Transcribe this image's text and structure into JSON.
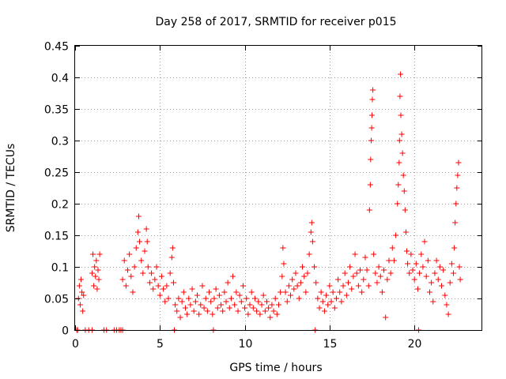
{
  "chart_data": {
    "type": "scatter",
    "title": "Day 258 of 2017, SRMTID for receiver p015",
    "xlabel": "GPS time / hours",
    "ylabel": "SRMTID / TECUs",
    "xlim": [
      0,
      24
    ],
    "ylim": [
      0,
      0.45
    ],
    "grid": true,
    "marker": "plus",
    "series_color": "#ff0000",
    "x_ticks": [
      0,
      5,
      10,
      15,
      20
    ],
    "x_tick_labels": [
      "0",
      "5",
      "10",
      "15",
      "20"
    ],
    "y_ticks": [
      0,
      0.05,
      0.1,
      0.15,
      0.2,
      0.25,
      0.3,
      0.35,
      0.4,
      0.45
    ],
    "y_tick_labels": [
      "0",
      "0.05",
      "0.1",
      "0.15",
      "0.2",
      "0.25",
      "0.3",
      "0.35",
      "0.4",
      "0.45"
    ],
    "series": [
      {
        "name": "SRMTID",
        "points": [
          [
            0.1,
            0.0
          ],
          [
            0.15,
            0.0
          ],
          [
            0.6,
            0.0
          ],
          [
            0.8,
            0.0
          ],
          [
            1.0,
            0.0
          ],
          [
            1.7,
            0.0
          ],
          [
            1.85,
            0.0
          ],
          [
            2.3,
            0.0
          ],
          [
            2.45,
            0.0
          ],
          [
            2.6,
            0.0
          ],
          [
            2.7,
            0.0
          ],
          [
            2.8,
            0.0
          ],
          [
            5.85,
            0.0
          ],
          [
            8.15,
            0.0
          ],
          [
            14.15,
            0.0
          ],
          [
            20.25,
            0.0
          ],
          [
            0.2,
            0.05
          ],
          [
            0.25,
            0.07
          ],
          [
            0.3,
            0.04
          ],
          [
            0.35,
            0.08
          ],
          [
            0.4,
            0.06
          ],
          [
            0.45,
            0.03
          ],
          [
            0.5,
            0.055
          ],
          [
            1.0,
            0.09
          ],
          [
            1.05,
            0.12
          ],
          [
            1.1,
            0.07
          ],
          [
            1.15,
            0.1
          ],
          [
            1.2,
            0.085
          ],
          [
            1.25,
            0.11
          ],
          [
            1.3,
            0.065
          ],
          [
            1.35,
            0.095
          ],
          [
            1.4,
            0.08
          ],
          [
            1.45,
            0.12
          ],
          [
            2.8,
            0.08
          ],
          [
            2.9,
            0.11
          ],
          [
            3.0,
            0.07
          ],
          [
            3.1,
            0.095
          ],
          [
            3.2,
            0.12
          ],
          [
            3.3,
            0.085
          ],
          [
            3.4,
            0.06
          ],
          [
            3.5,
            0.1
          ],
          [
            3.6,
            0.13
          ],
          [
            3.7,
            0.155
          ],
          [
            3.75,
            0.18
          ],
          [
            3.8,
            0.14
          ],
          [
            3.9,
            0.11
          ],
          [
            4.0,
            0.09
          ],
          [
            4.1,
            0.125
          ],
          [
            4.2,
            0.16
          ],
          [
            4.25,
            0.14
          ],
          [
            4.3,
            0.1
          ],
          [
            4.4,
            0.075
          ],
          [
            4.5,
            0.09
          ],
          [
            4.6,
            0.065
          ],
          [
            4.7,
            0.08
          ],
          [
            4.8,
            0.1
          ],
          [
            4.9,
            0.07
          ],
          [
            5.0,
            0.055
          ],
          [
            5.1,
            0.085
          ],
          [
            5.2,
            0.065
          ],
          [
            5.3,
            0.045
          ],
          [
            5.4,
            0.07
          ],
          [
            5.5,
            0.05
          ],
          [
            5.6,
            0.09
          ],
          [
            5.7,
            0.115
          ],
          [
            5.75,
            0.13
          ],
          [
            5.8,
            0.075
          ],
          [
            5.9,
            0.04
          ],
          [
            6.0,
            0.03
          ],
          [
            6.1,
            0.05
          ],
          [
            6.2,
            0.02
          ],
          [
            6.3,
            0.045
          ],
          [
            6.4,
            0.06
          ],
          [
            6.5,
            0.035
          ],
          [
            6.6,
            0.025
          ],
          [
            6.7,
            0.05
          ],
          [
            6.8,
            0.04
          ],
          [
            6.9,
            0.065
          ],
          [
            7.0,
            0.03
          ],
          [
            7.1,
            0.045
          ],
          [
            7.2,
            0.055
          ],
          [
            7.3,
            0.025
          ],
          [
            7.4,
            0.04
          ],
          [
            7.5,
            0.07
          ],
          [
            7.6,
            0.035
          ],
          [
            7.7,
            0.05
          ],
          [
            7.8,
            0.03
          ],
          [
            7.9,
            0.06
          ],
          [
            8.0,
            0.045
          ],
          [
            8.1,
            0.025
          ],
          [
            8.2,
            0.05
          ],
          [
            8.3,
            0.065
          ],
          [
            8.4,
            0.035
          ],
          [
            8.5,
            0.055
          ],
          [
            8.6,
            0.04
          ],
          [
            8.7,
            0.03
          ],
          [
            8.8,
            0.06
          ],
          [
            8.9,
            0.045
          ],
          [
            9.0,
            0.075
          ],
          [
            9.1,
            0.035
          ],
          [
            9.2,
            0.05
          ],
          [
            9.3,
            0.085
          ],
          [
            9.4,
            0.04
          ],
          [
            9.5,
            0.06
          ],
          [
            9.6,
            0.03
          ],
          [
            9.7,
            0.055
          ],
          [
            9.8,
            0.045
          ],
          [
            9.9,
            0.07
          ],
          [
            10.0,
            0.035
          ],
          [
            10.1,
            0.05
          ],
          [
            10.2,
            0.025
          ],
          [
            10.3,
            0.04
          ],
          [
            10.4,
            0.06
          ],
          [
            10.5,
            0.035
          ],
          [
            10.6,
            0.05
          ],
          [
            10.7,
            0.03
          ],
          [
            10.8,
            0.045
          ],
          [
            10.9,
            0.025
          ],
          [
            11.0,
            0.04
          ],
          [
            11.1,
            0.055
          ],
          [
            11.2,
            0.03
          ],
          [
            11.3,
            0.045
          ],
          [
            11.4,
            0.035
          ],
          [
            11.5,
            0.02
          ],
          [
            11.6,
            0.04
          ],
          [
            11.7,
            0.03
          ],
          [
            11.8,
            0.05
          ],
          [
            11.9,
            0.025
          ],
          [
            12.0,
            0.04
          ],
          [
            12.1,
            0.06
          ],
          [
            12.2,
            0.085
          ],
          [
            12.25,
            0.13
          ],
          [
            12.3,
            0.105
          ],
          [
            12.4,
            0.06
          ],
          [
            12.5,
            0.045
          ],
          [
            12.6,
            0.07
          ],
          [
            12.7,
            0.055
          ],
          [
            12.8,
            0.08
          ],
          [
            12.9,
            0.065
          ],
          [
            13.0,
            0.09
          ],
          [
            13.1,
            0.07
          ],
          [
            13.2,
            0.05
          ],
          [
            13.3,
            0.075
          ],
          [
            13.4,
            0.1
          ],
          [
            13.5,
            0.085
          ],
          [
            13.6,
            0.06
          ],
          [
            13.7,
            0.09
          ],
          [
            13.8,
            0.12
          ],
          [
            13.9,
            0.155
          ],
          [
            13.95,
            0.17
          ],
          [
            14.0,
            0.14
          ],
          [
            14.1,
            0.1
          ],
          [
            14.2,
            0.075
          ],
          [
            14.3,
            0.05
          ],
          [
            14.4,
            0.035
          ],
          [
            14.5,
            0.06
          ],
          [
            14.6,
            0.045
          ],
          [
            14.7,
            0.03
          ],
          [
            14.8,
            0.055
          ],
          [
            14.9,
            0.04
          ],
          [
            15.0,
            0.07
          ],
          [
            15.1,
            0.045
          ],
          [
            15.2,
            0.06
          ],
          [
            15.3,
            0.035
          ],
          [
            15.4,
            0.05
          ],
          [
            15.5,
            0.08
          ],
          [
            15.6,
            0.06
          ],
          [
            15.7,
            0.045
          ],
          [
            15.8,
            0.07
          ],
          [
            15.9,
            0.09
          ],
          [
            16.0,
            0.055
          ],
          [
            16.1,
            0.075
          ],
          [
            16.2,
            0.1
          ],
          [
            16.3,
            0.065
          ],
          [
            16.4,
            0.085
          ],
          [
            16.5,
            0.12
          ],
          [
            16.6,
            0.09
          ],
          [
            16.7,
            0.07
          ],
          [
            16.8,
            0.095
          ],
          [
            16.9,
            0.06
          ],
          [
            17.0,
            0.08
          ],
          [
            17.1,
            0.115
          ],
          [
            17.2,
            0.095
          ],
          [
            17.3,
            0.07
          ],
          [
            17.35,
            0.19
          ],
          [
            17.4,
            0.23
          ],
          [
            17.42,
            0.27
          ],
          [
            17.45,
            0.3
          ],
          [
            17.48,
            0.32
          ],
          [
            17.5,
            0.34
          ],
          [
            17.52,
            0.365
          ],
          [
            17.55,
            0.38
          ],
          [
            17.6,
            0.12
          ],
          [
            17.7,
            0.09
          ],
          [
            17.8,
            0.075
          ],
          [
            17.9,
            0.1
          ],
          [
            18.0,
            0.085
          ],
          [
            18.1,
            0.06
          ],
          [
            18.2,
            0.095
          ],
          [
            18.3,
            0.02
          ],
          [
            18.4,
            0.08
          ],
          [
            18.5,
            0.11
          ],
          [
            18.6,
            0.09
          ],
          [
            18.7,
            0.13
          ],
          [
            18.8,
            0.11
          ],
          [
            18.9,
            0.15
          ],
          [
            19.0,
            0.2
          ],
          [
            19.05,
            0.23
          ],
          [
            19.1,
            0.265
          ],
          [
            19.12,
            0.3
          ],
          [
            19.15,
            0.37
          ],
          [
            19.18,
            0.405
          ],
          [
            19.2,
            0.34
          ],
          [
            19.25,
            0.31
          ],
          [
            19.3,
            0.28
          ],
          [
            19.35,
            0.245
          ],
          [
            19.4,
            0.22
          ],
          [
            19.45,
            0.19
          ],
          [
            19.5,
            0.155
          ],
          [
            19.55,
            0.125
          ],
          [
            19.6,
            0.105
          ],
          [
            19.7,
            0.09
          ],
          [
            19.8,
            0.12
          ],
          [
            19.9,
            0.095
          ],
          [
            20.0,
            0.08
          ],
          [
            20.1,
            0.105
          ],
          [
            20.2,
            0.065
          ],
          [
            20.3,
            0.09
          ],
          [
            20.4,
            0.12
          ],
          [
            20.5,
            0.1
          ],
          [
            20.6,
            0.14
          ],
          [
            20.7,
            0.085
          ],
          [
            20.8,
            0.11
          ],
          [
            20.9,
            0.06
          ],
          [
            21.0,
            0.075
          ],
          [
            21.1,
            0.045
          ],
          [
            21.2,
            0.09
          ],
          [
            21.3,
            0.11
          ],
          [
            21.4,
            0.08
          ],
          [
            21.5,
            0.1
          ],
          [
            21.6,
            0.07
          ],
          [
            21.7,
            0.095
          ],
          [
            21.8,
            0.055
          ],
          [
            21.9,
            0.04
          ],
          [
            22.0,
            0.025
          ],
          [
            22.1,
            0.075
          ],
          [
            22.2,
            0.105
          ],
          [
            22.3,
            0.09
          ],
          [
            22.35,
            0.13
          ],
          [
            22.4,
            0.17
          ],
          [
            22.45,
            0.2
          ],
          [
            22.5,
            0.225
          ],
          [
            22.55,
            0.245
          ],
          [
            22.6,
            0.265
          ],
          [
            22.65,
            0.1
          ],
          [
            22.7,
            0.08
          ]
        ]
      }
    ]
  }
}
